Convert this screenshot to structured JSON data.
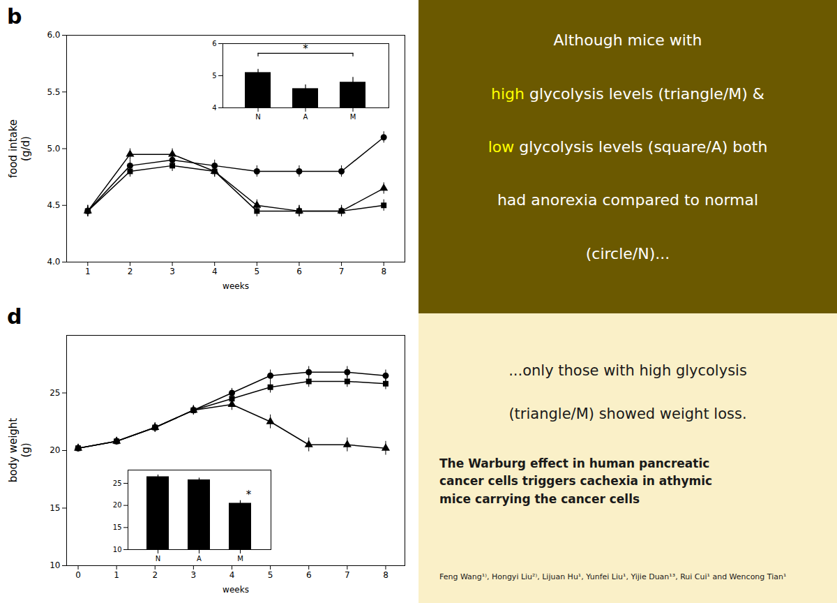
{
  "chart_data": [
    {
      "type": "line",
      "title": "b",
      "xlabel": "weeks",
      "ylabel": "food intake\n(g/d)",
      "x": [
        1,
        2,
        3,
        4,
        5,
        6,
        7,
        8
      ],
      "xlim": [
        0.5,
        8.5
      ],
      "xticks": [
        1,
        2,
        3,
        4,
        5,
        6,
        7,
        8
      ],
      "ylim": [
        4.0,
        6.0
      ],
      "yticks": [
        {
          "value": 4.0,
          "label": "4.0"
        },
        4.5,
        {
          "value": 5.0,
          "label": "5.0"
        },
        5.5,
        {
          "value": 6.0,
          "label": "6.0"
        }
      ],
      "series": [
        {
          "color": "#000000",
          "marker": "circle",
          "values": [
            4.45,
            4.85,
            4.9,
            4.85,
            4.8,
            4.8,
            4.8,
            5.1
          ],
          "errors": [
            0.05,
            0.05,
            0.05,
            0.05,
            0.05,
            0.05,
            0.05,
            0.05
          ]
        },
        {
          "color": "#000000",
          "marker": "square",
          "values": [
            4.45,
            4.8,
            4.85,
            4.8,
            4.45,
            4.45,
            4.45,
            4.5
          ],
          "errors": [
            0.05,
            0.05,
            0.05,
            0.05,
            0.05,
            0.05,
            0.05,
            0.05
          ]
        },
        {
          "color": "#000000",
          "marker": "triangle",
          "values": [
            4.45,
            4.95,
            4.95,
            4.8,
            4.5,
            4.45,
            4.45,
            4.65
          ],
          "errors": [
            0.05,
            0.05,
            0.05,
            0.05,
            0.05,
            0.05,
            0.05,
            0.05
          ]
        }
      ]
    },
    {
      "type": "bar",
      "categories": [
        "N",
        "A",
        "M"
      ],
      "values": [
        5.1,
        4.6,
        4.8
      ],
      "errors": [
        0.1,
        0.12,
        0.15
      ],
      "color": "#000000",
      "ylim": [
        4,
        6
      ],
      "yticks": [
        4,
        5,
        6
      ],
      "annotations": [
        {
          "text": "*",
          "x": "A",
          "y": 5.7,
          "from": "N",
          "to": "M"
        }
      ]
    },
    {
      "type": "line",
      "title": "d",
      "xlabel": "weeks",
      "ylabel": "body weight\n(g)",
      "x": [
        0,
        1,
        2,
        3,
        4,
        5,
        6,
        7,
        8
      ],
      "xlim": [
        -0.3,
        8.5
      ],
      "xticks": [
        0,
        1,
        2,
        3,
        4,
        5,
        6,
        7,
        8
      ],
      "ylim": [
        10,
        30
      ],
      "yticks": [
        10,
        15,
        20,
        25
      ],
      "series": [
        {
          "color": "#000000",
          "marker": "circle",
          "values": [
            20.2,
            20.8,
            22.0,
            23.5,
            25.0,
            26.5,
            26.8,
            26.8,
            26.5
          ],
          "errors": [
            0.3,
            0.3,
            0.4,
            0.4,
            0.4,
            0.5,
            0.5,
            0.5,
            0.5
          ]
        },
        {
          "color": "#000000",
          "marker": "square",
          "values": [
            20.2,
            20.8,
            22.0,
            23.5,
            24.5,
            25.5,
            26.0,
            26.0,
            25.8
          ],
          "errors": [
            0.3,
            0.3,
            0.4,
            0.4,
            0.4,
            0.5,
            0.5,
            0.5,
            0.5
          ]
        },
        {
          "color": "#000000",
          "marker": "triangle",
          "values": [
            20.2,
            20.8,
            22.0,
            23.5,
            24.0,
            22.5,
            20.5,
            20.5,
            20.2
          ],
          "errors": [
            0.3,
            0.3,
            0.4,
            0.4,
            0.5,
            0.6,
            0.6,
            0.6,
            0.6
          ]
        }
      ]
    },
    {
      "type": "bar",
      "categories": [
        "N",
        "A",
        "M"
      ],
      "values": [
        26.5,
        25.8,
        20.5
      ],
      "errors": [
        0.4,
        0.4,
        0.6
      ],
      "color": "#000000",
      "ylim": [
        10,
        28
      ],
      "yticks": [
        10,
        15,
        20,
        25
      ],
      "annotations": [
        {
          "text": "*",
          "x": "M",
          "y": 21.5
        }
      ]
    },
    {
      "type": "text",
      "color": "#6b5900",
      "annotations": [
        [
          {
            "text": "Although mice with",
            "color": "#ffffff"
          }
        ],
        [
          {
            "text": "high",
            "color": "#ffff00"
          },
          {
            "text": " glycolysis levels (triangle/M) &",
            "color": "#ffffff"
          }
        ],
        [
          {
            "text": "low",
            "color": "#ffff00"
          },
          {
            "text": " glycolysis levels (square/A) both",
            "color": "#ffffff"
          }
        ],
        [
          {
            "text": "had anorexia compared to normal",
            "color": "#ffffff"
          }
        ],
        [
          {
            "text": "(circle/N)...",
            "color": "#ffffff"
          }
        ]
      ]
    },
    {
      "type": "text",
      "color": "#faf0c8",
      "annotations": [
        [
          {
            "text": "...only those with high glycolysis",
            "color": "#1a1a1a"
          }
        ],
        [
          {
            "text": "(triangle/M) showed weight loss.",
            "color": "#1a1a1a"
          }
        ],
        [
          {
            "text": "The Warburg effect in human pancreatic\ncancer cells triggers cachexia in athymic\nmice carrying the cancer cells",
            "color": "#1a1a1a"
          }
        ],
        [
          {
            "text": "Feng Wang¹⁾, Hongyi Liu²⁾, Lijuan Hu¹, Yunfei Liu¹, Yijie Duan¹³, Rui Cui¹ and Wencong Tian¹",
            "color": "#1a1a1a"
          }
        ]
      ]
    }
  ]
}
